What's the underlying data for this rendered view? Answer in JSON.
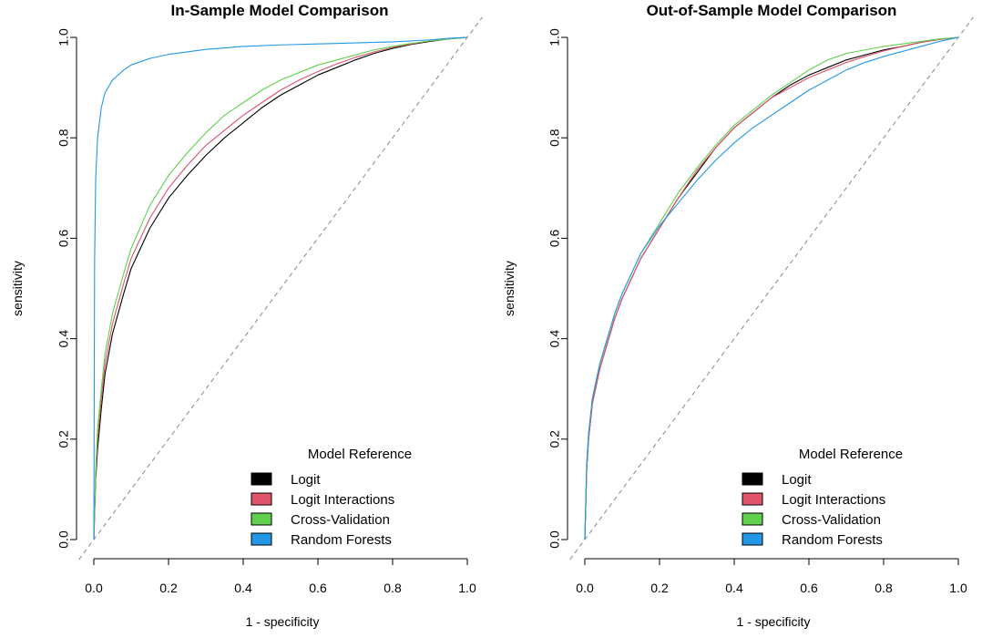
{
  "chart_data": [
    {
      "type": "line",
      "title": "In-Sample Model Comparison",
      "xlabel": "1 - specificity",
      "ylabel": "sensitivity",
      "xlim": [
        0,
        1
      ],
      "ylim": [
        0,
        1
      ],
      "xticks": [
        "0.0",
        "0.2",
        "0.4",
        "0.6",
        "0.8",
        "1.0"
      ],
      "yticks": [
        "0.0",
        "0.2",
        "0.4",
        "0.6",
        "0.8",
        "1.0"
      ],
      "legend_title": "Model Reference",
      "legend_position": "bottom-right",
      "reference_line": "diagonal dashed",
      "series": [
        {
          "name": "Logit",
          "color": "#000000",
          "points": [
            [
              0,
              0
            ],
            [
              0.005,
              0.12
            ],
            [
              0.01,
              0.18
            ],
            [
              0.02,
              0.26
            ],
            [
              0.03,
              0.33
            ],
            [
              0.05,
              0.41
            ],
            [
              0.08,
              0.49
            ],
            [
              0.1,
              0.54
            ],
            [
              0.15,
              0.62
            ],
            [
              0.2,
              0.68
            ],
            [
              0.25,
              0.725
            ],
            [
              0.3,
              0.765
            ],
            [
              0.35,
              0.8
            ],
            [
              0.4,
              0.83
            ],
            [
              0.45,
              0.86
            ],
            [
              0.5,
              0.885
            ],
            [
              0.55,
              0.905
            ],
            [
              0.6,
              0.925
            ],
            [
              0.65,
              0.94
            ],
            [
              0.7,
              0.955
            ],
            [
              0.75,
              0.968
            ],
            [
              0.8,
              0.978
            ],
            [
              0.85,
              0.986
            ],
            [
              0.9,
              0.992
            ],
            [
              0.95,
              0.997
            ],
            [
              1,
              1
            ]
          ]
        },
        {
          "name": "Logit Interactions",
          "color": "#DF536B",
          "points": [
            [
              0,
              0
            ],
            [
              0.005,
              0.13
            ],
            [
              0.01,
              0.2
            ],
            [
              0.02,
              0.28
            ],
            [
              0.03,
              0.35
            ],
            [
              0.05,
              0.43
            ],
            [
              0.08,
              0.51
            ],
            [
              0.1,
              0.56
            ],
            [
              0.15,
              0.64
            ],
            [
              0.2,
              0.7
            ],
            [
              0.25,
              0.745
            ],
            [
              0.3,
              0.785
            ],
            [
              0.35,
              0.815
            ],
            [
              0.4,
              0.845
            ],
            [
              0.45,
              0.87
            ],
            [
              0.5,
              0.895
            ],
            [
              0.55,
              0.915
            ],
            [
              0.6,
              0.932
            ],
            [
              0.65,
              0.947
            ],
            [
              0.7,
              0.96
            ],
            [
              0.75,
              0.971
            ],
            [
              0.8,
              0.98
            ],
            [
              0.85,
              0.987
            ],
            [
              0.9,
              0.993
            ],
            [
              0.95,
              0.997
            ],
            [
              1,
              1
            ]
          ]
        },
        {
          "name": "Cross-Validation",
          "color": "#61D04F",
          "points": [
            [
              0,
              0
            ],
            [
              0.005,
              0.14
            ],
            [
              0.01,
              0.22
            ],
            [
              0.02,
              0.3
            ],
            [
              0.03,
              0.37
            ],
            [
              0.05,
              0.45
            ],
            [
              0.08,
              0.53
            ],
            [
              0.1,
              0.58
            ],
            [
              0.15,
              0.665
            ],
            [
              0.2,
              0.725
            ],
            [
              0.25,
              0.77
            ],
            [
              0.3,
              0.81
            ],
            [
              0.35,
              0.845
            ],
            [
              0.4,
              0.87
            ],
            [
              0.45,
              0.895
            ],
            [
              0.5,
              0.915
            ],
            [
              0.55,
              0.93
            ],
            [
              0.6,
              0.945
            ],
            [
              0.65,
              0.955
            ],
            [
              0.7,
              0.965
            ],
            [
              0.75,
              0.975
            ],
            [
              0.8,
              0.982
            ],
            [
              0.85,
              0.988
            ],
            [
              0.9,
              0.993
            ],
            [
              0.95,
              0.997
            ],
            [
              1,
              1
            ]
          ]
        },
        {
          "name": "Random Forests",
          "color": "#2297E6",
          "points": [
            [
              0,
              0
            ],
            [
              0.002,
              0.55
            ],
            [
              0.005,
              0.72
            ],
            [
              0.01,
              0.8
            ],
            [
              0.02,
              0.86
            ],
            [
              0.03,
              0.89
            ],
            [
              0.05,
              0.915
            ],
            [
              0.08,
              0.935
            ],
            [
              0.1,
              0.945
            ],
            [
              0.15,
              0.958
            ],
            [
              0.2,
              0.966
            ],
            [
              0.3,
              0.976
            ],
            [
              0.4,
              0.982
            ],
            [
              0.5,
              0.985
            ],
            [
              0.6,
              0.987
            ],
            [
              0.7,
              0.989
            ],
            [
              0.8,
              0.991
            ],
            [
              0.9,
              0.995
            ],
            [
              0.95,
              0.998
            ],
            [
              1,
              1
            ]
          ]
        }
      ]
    },
    {
      "type": "line",
      "title": "Out-of-Sample Model Comparison",
      "xlabel": "1 - specificity",
      "ylabel": "sensitivity",
      "xlim": [
        0,
        1
      ],
      "ylim": [
        0,
        1
      ],
      "xticks": [
        "0.0",
        "0.2",
        "0.4",
        "0.6",
        "0.8",
        "1.0"
      ],
      "yticks": [
        "0.0",
        "0.2",
        "0.4",
        "0.6",
        "0.8",
        "1.0"
      ],
      "legend_title": "Model Reference",
      "legend_position": "bottom-right",
      "reference_line": "diagonal dashed",
      "series": [
        {
          "name": "Logit",
          "color": "#000000",
          "points": [
            [
              0,
              0
            ],
            [
              0.005,
              0.14
            ],
            [
              0.01,
              0.2
            ],
            [
              0.02,
              0.27
            ],
            [
              0.04,
              0.34
            ],
            [
              0.06,
              0.39
            ],
            [
              0.08,
              0.44
            ],
            [
              0.1,
              0.48
            ],
            [
              0.15,
              0.56
            ],
            [
              0.2,
              0.62
            ],
            [
              0.25,
              0.68
            ],
            [
              0.3,
              0.73
            ],
            [
              0.35,
              0.78
            ],
            [
              0.4,
              0.82
            ],
            [
              0.45,
              0.85
            ],
            [
              0.5,
              0.88
            ],
            [
              0.55,
              0.905
            ],
            [
              0.6,
              0.925
            ],
            [
              0.65,
              0.94
            ],
            [
              0.7,
              0.955
            ],
            [
              0.75,
              0.965
            ],
            [
              0.8,
              0.975
            ],
            [
              0.85,
              0.982
            ],
            [
              0.9,
              0.99
            ],
            [
              0.95,
              0.996
            ],
            [
              1,
              1
            ]
          ]
        },
        {
          "name": "Logit Interactions",
          "color": "#DF536B",
          "points": [
            [
              0,
              0
            ],
            [
              0.005,
              0.14
            ],
            [
              0.01,
              0.2
            ],
            [
              0.02,
              0.27
            ],
            [
              0.04,
              0.34
            ],
            [
              0.06,
              0.39
            ],
            [
              0.08,
              0.44
            ],
            [
              0.1,
              0.48
            ],
            [
              0.15,
              0.56
            ],
            [
              0.2,
              0.62
            ],
            [
              0.25,
              0.68
            ],
            [
              0.3,
              0.735
            ],
            [
              0.35,
              0.78
            ],
            [
              0.4,
              0.82
            ],
            [
              0.45,
              0.85
            ],
            [
              0.5,
              0.88
            ],
            [
              0.55,
              0.9
            ],
            [
              0.6,
              0.92
            ],
            [
              0.65,
              0.935
            ],
            [
              0.7,
              0.95
            ],
            [
              0.75,
              0.962
            ],
            [
              0.8,
              0.973
            ],
            [
              0.85,
              0.982
            ],
            [
              0.9,
              0.99
            ],
            [
              0.95,
              0.996
            ],
            [
              1,
              1
            ]
          ]
        },
        {
          "name": "Cross-Validation",
          "color": "#61D04F",
          "points": [
            [
              0,
              0
            ],
            [
              0.005,
              0.15
            ],
            [
              0.01,
              0.21
            ],
            [
              0.02,
              0.28
            ],
            [
              0.04,
              0.35
            ],
            [
              0.06,
              0.4
            ],
            [
              0.08,
              0.45
            ],
            [
              0.1,
              0.49
            ],
            [
              0.15,
              0.57
            ],
            [
              0.2,
              0.63
            ],
            [
              0.25,
              0.69
            ],
            [
              0.3,
              0.74
            ],
            [
              0.35,
              0.785
            ],
            [
              0.4,
              0.825
            ],
            [
              0.45,
              0.855
            ],
            [
              0.5,
              0.885
            ],
            [
              0.55,
              0.91
            ],
            [
              0.6,
              0.935
            ],
            [
              0.65,
              0.955
            ],
            [
              0.7,
              0.968
            ],
            [
              0.75,
              0.975
            ],
            [
              0.8,
              0.982
            ],
            [
              0.85,
              0.987
            ],
            [
              0.9,
              0.992
            ],
            [
              0.95,
              0.997
            ],
            [
              1,
              1
            ]
          ]
        },
        {
          "name": "Random Forests",
          "color": "#2297E6",
          "points": [
            [
              0,
              0
            ],
            [
              0.005,
              0.15
            ],
            [
              0.01,
              0.21
            ],
            [
              0.02,
              0.28
            ],
            [
              0.04,
              0.35
            ],
            [
              0.06,
              0.4
            ],
            [
              0.08,
              0.45
            ],
            [
              0.1,
              0.49
            ],
            [
              0.15,
              0.57
            ],
            [
              0.2,
              0.625
            ],
            [
              0.25,
              0.67
            ],
            [
              0.3,
              0.715
            ],
            [
              0.35,
              0.755
            ],
            [
              0.4,
              0.79
            ],
            [
              0.45,
              0.82
            ],
            [
              0.5,
              0.845
            ],
            [
              0.55,
              0.87
            ],
            [
              0.6,
              0.895
            ],
            [
              0.65,
              0.915
            ],
            [
              0.7,
              0.935
            ],
            [
              0.75,
              0.95
            ],
            [
              0.8,
              0.962
            ],
            [
              0.85,
              0.972
            ],
            [
              0.9,
              0.982
            ],
            [
              0.95,
              0.992
            ],
            [
              1,
              1
            ]
          ]
        }
      ]
    }
  ]
}
